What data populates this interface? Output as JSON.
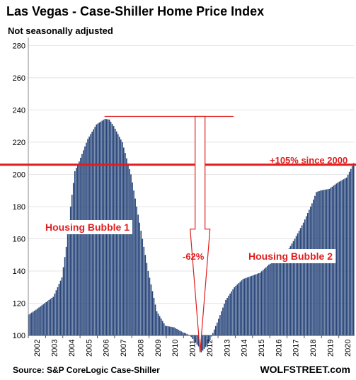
{
  "title": "Las Vegas - Case-Shiller Home Price Index",
  "subtitle": "Not seasonally adjusted",
  "source": "Source: S&P CoreLogic Case-Shiller",
  "brand": "WOLFSTREET.com",
  "colors": {
    "bar": "#27457a",
    "accent": "#e01e1e",
    "grid": "#e4e4e4"
  },
  "chart_data": {
    "type": "bar",
    "title": "Las Vegas - Case-Shiller Home Price Index",
    "subtitle": "Not seasonally adjusted",
    "frequency": "monthly",
    "x_start": "2002-01",
    "x_end": "2020-11",
    "x_tick_labels": [
      "2002",
      "2003",
      "2004",
      "2005",
      "2006",
      "2007",
      "2008",
      "2009",
      "2010",
      "2011",
      "2012",
      "2013",
      "2014",
      "2015",
      "2016",
      "2017",
      "2018",
      "2019",
      "2020"
    ],
    "ylim": [
      100,
      285
    ],
    "y_ticks": [
      100,
      120,
      140,
      160,
      180,
      200,
      220,
      240,
      260,
      280
    ],
    "grid": "horizontal",
    "anchors": [
      [
        "2002-01",
        113
      ],
      [
        "2002-06",
        116
      ],
      [
        "2002-12",
        120
      ],
      [
        "2003-06",
        124
      ],
      [
        "2003-12",
        136
      ],
      [
        "2004-03",
        155
      ],
      [
        "2004-06",
        180
      ],
      [
        "2004-09",
        202
      ],
      [
        "2004-12",
        208
      ],
      [
        "2005-06",
        222
      ],
      [
        "2005-12",
        231
      ],
      [
        "2006-06",
        234.5
      ],
      [
        "2006-09",
        234
      ],
      [
        "2006-12",
        230
      ],
      [
        "2007-06",
        220
      ],
      [
        "2007-12",
        200
      ],
      [
        "2008-06",
        170
      ],
      [
        "2008-12",
        140
      ],
      [
        "2009-06",
        115
      ],
      [
        "2009-12",
        106
      ],
      [
        "2010-06",
        105
      ],
      [
        "2010-12",
        102
      ],
      [
        "2011-03",
        101
      ],
      [
        "2011-06",
        99
      ],
      [
        "2011-12",
        92
      ],
      [
        "2012-01",
        89.5
      ],
      [
        "2012-06",
        95
      ],
      [
        "2012-12",
        108
      ],
      [
        "2013-06",
        122
      ],
      [
        "2013-12",
        130
      ],
      [
        "2014-06",
        135
      ],
      [
        "2014-12",
        137
      ],
      [
        "2015-06",
        139
      ],
      [
        "2015-12",
        144
      ],
      [
        "2016-06",
        147
      ],
      [
        "2016-12",
        151
      ],
      [
        "2017-06",
        160
      ],
      [
        "2017-12",
        170
      ],
      [
        "2018-06",
        182
      ],
      [
        "2018-09",
        189
      ],
      [
        "2018-12",
        190
      ],
      [
        "2019-06",
        191
      ],
      [
        "2019-12",
        195
      ],
      [
        "2020-06",
        198
      ],
      [
        "2020-11",
        207
      ]
    ],
    "annotations": [
      {
        "text": "+105% since 2000",
        "type": "hline",
        "y": 206
      },
      {
        "text": "Housing Bubble 1",
        "x": "2006-01",
        "y": 167
      },
      {
        "text": "-62%",
        "type": "drop-arrow",
        "from": 236,
        "to": 89.5,
        "x": "2011-12"
      },
      {
        "text": "Housing Bubble 2",
        "x": "2016-06",
        "y": 148
      }
    ]
  }
}
